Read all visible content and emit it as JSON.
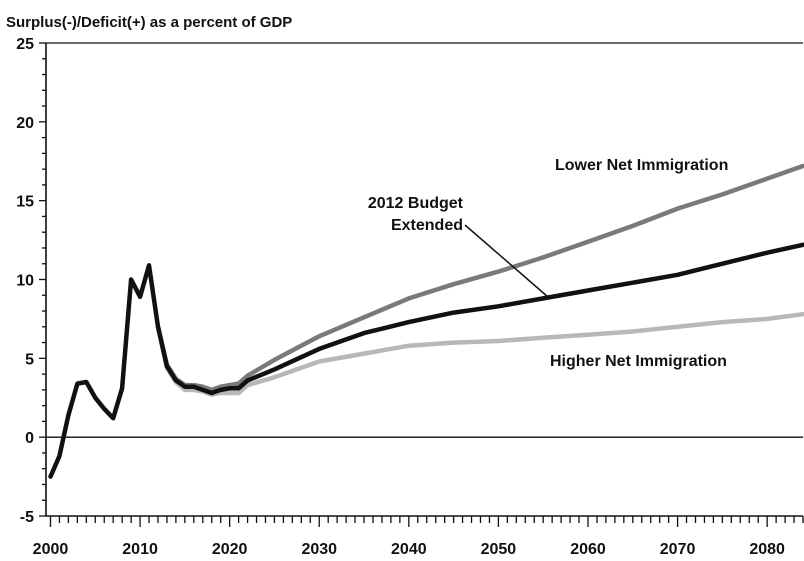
{
  "chart_data": {
    "type": "line",
    "title": "",
    "ylabel": "Surplus(-)/Deficit(+) as a percent of GDP",
    "xlabel": "",
    "xlim": [
      1999.5,
      2084
    ],
    "ylim": [
      -5,
      25
    ],
    "y_ticks": [
      -5,
      0,
      5,
      10,
      15,
      20,
      25
    ],
    "y_tick_labels": [
      "-5",
      "0",
      "5",
      "10",
      "15",
      "20",
      "25"
    ],
    "x_ticks": [
      2000,
      2010,
      2020,
      2030,
      2040,
      2050,
      2060,
      2070,
      2080
    ],
    "x_tick_labels": [
      "2000",
      "2010",
      "2020",
      "2030",
      "2040",
      "2050",
      "2060",
      "2070",
      "2080"
    ],
    "zero_line": true,
    "grid": false,
    "annotations": [
      {
        "text": "Lower Net Immigration"
      },
      {
        "text": "2012 Budget"
      },
      {
        "text": "Extended"
      },
      {
        "text": "Higher Net Immigration"
      }
    ],
    "series": [
      {
        "color": "#7a7a7a",
        "label": "Lower Net Immigration",
        "x": [
          2012,
          2013,
          2014,
          2015,
          2016,
          2017,
          2018,
          2019,
          2020,
          2021,
          2022,
          2025,
          2030,
          2035,
          2040,
          2045,
          2050,
          2055,
          2060,
          2065,
          2070,
          2075,
          2080,
          2084
        ],
        "y": [
          7.0,
          4.6,
          3.7,
          3.3,
          3.3,
          3.2,
          3.0,
          3.2,
          3.3,
          3.4,
          3.9,
          4.9,
          6.4,
          7.6,
          8.8,
          9.7,
          10.5,
          11.4,
          12.4,
          13.4,
          14.5,
          15.4,
          16.4,
          17.2
        ]
      },
      {
        "color": "#b8b8b8",
        "label": "Higher Net Immigration",
        "x": [
          2012,
          2013,
          2014,
          2015,
          2016,
          2017,
          2018,
          2019,
          2020,
          2021,
          2022,
          2025,
          2030,
          2035,
          2040,
          2045,
          2050,
          2055,
          2060,
          2065,
          2070,
          2075,
          2080,
          2084
        ],
        "y": [
          7.0,
          4.4,
          3.5,
          3.0,
          3.0,
          2.9,
          2.7,
          2.8,
          2.8,
          2.8,
          3.3,
          3.8,
          4.8,
          5.3,
          5.8,
          6.0,
          6.1,
          6.3,
          6.5,
          6.7,
          7.0,
          7.3,
          7.5,
          7.8
        ]
      },
      {
        "color": "#111111",
        "label": "2012 Budget Extended",
        "x": [
          2000,
          2001,
          2002,
          2003,
          2004,
          2005,
          2006,
          2007,
          2008,
          2009,
          2010,
          2011,
          2012,
          2013,
          2014,
          2015,
          2016,
          2017,
          2018,
          2019,
          2020,
          2021,
          2022,
          2025,
          2030,
          2035,
          2040,
          2045,
          2050,
          2055,
          2060,
          2065,
          2070,
          2075,
          2080,
          2084
        ],
        "y": [
          -2.5,
          -1.2,
          1.4,
          3.4,
          3.5,
          2.5,
          1.8,
          1.2,
          3.1,
          10.0,
          8.9,
          10.9,
          7.0,
          4.5,
          3.6,
          3.2,
          3.2,
          3.0,
          2.8,
          3.0,
          3.1,
          3.1,
          3.6,
          4.3,
          5.6,
          6.6,
          7.3,
          7.9,
          8.3,
          8.8,
          9.3,
          9.8,
          10.3,
          11.0,
          11.7,
          12.2
        ]
      }
    ]
  }
}
